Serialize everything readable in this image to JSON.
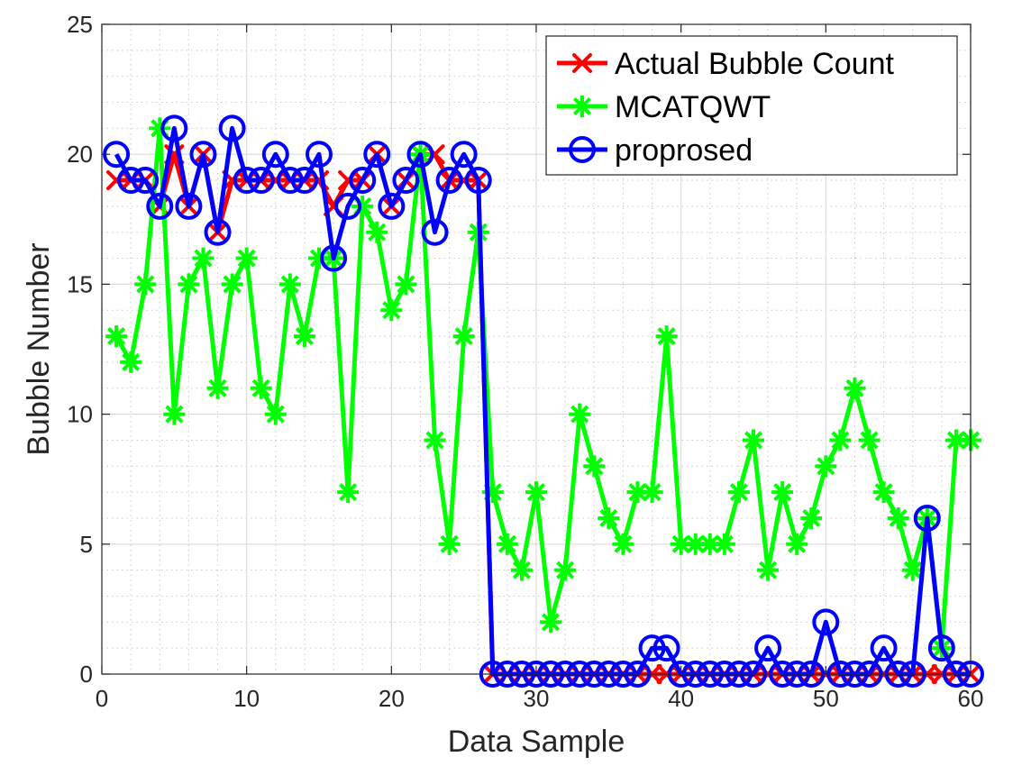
{
  "chart_data": {
    "type": "line",
    "title": "",
    "xlabel": "Data Sample",
    "ylabel": "Bubble Number",
    "xlim": [
      0,
      60
    ],
    "ylim": [
      0,
      25
    ],
    "xticks": [
      0,
      10,
      20,
      30,
      40,
      50,
      60
    ],
    "yticks": [
      0,
      5,
      10,
      15,
      20,
      25
    ],
    "grid": true,
    "minor_grid": true,
    "legend_position": "top-right",
    "x": [
      1,
      2,
      3,
      4,
      5,
      6,
      7,
      8,
      9,
      10,
      11,
      12,
      13,
      14,
      15,
      16,
      17,
      18,
      19,
      20,
      21,
      22,
      23,
      24,
      25,
      26,
      27,
      28,
      29,
      30,
      31,
      32,
      33,
      34,
      35,
      36,
      37,
      38,
      39,
      40,
      41,
      42,
      43,
      44,
      45,
      46,
      47,
      48,
      49,
      50,
      51,
      52,
      53,
      54,
      55,
      56,
      57,
      58,
      59,
      60
    ],
    "series": [
      {
        "name": "Actual Bubble Count",
        "color": "#ff0000",
        "marker": "x",
        "values": [
          19,
          19,
          19,
          18,
          20,
          18,
          20,
          17,
          19,
          19,
          19,
          19,
          19,
          19,
          19,
          18,
          19,
          19,
          20,
          18,
          19,
          20,
          20,
          19,
          19,
          19,
          0,
          0,
          0,
          0,
          0,
          0,
          0,
          0,
          0,
          0,
          0,
          0,
          0,
          0,
          0,
          0,
          0,
          0,
          0,
          0,
          0,
          0,
          0,
          0,
          0,
          0,
          0,
          0,
          0,
          0,
          0,
          0,
          0,
          0
        ]
      },
      {
        "name": "MCATQWT",
        "color": "#00ff00",
        "marker": "asterisk",
        "values": [
          13,
          12,
          15,
          21,
          10,
          15,
          16,
          11,
          15,
          16,
          11,
          10,
          15,
          13,
          16,
          16,
          7,
          18,
          17,
          14,
          15,
          20,
          9,
          5,
          13,
          17,
          7,
          5,
          4,
          7,
          2,
          4,
          10,
          8,
          6,
          5,
          7,
          7,
          13,
          5,
          5,
          5,
          5,
          7,
          9,
          4,
          7,
          5,
          6,
          8,
          9,
          11,
          9,
          7,
          6,
          4,
          6,
          1,
          9,
          9
        ]
      },
      {
        "name": "proprosed",
        "color": "#0000ff",
        "marker": "circle",
        "values": [
          20,
          19,
          19,
          18,
          21,
          18,
          20,
          17,
          21,
          19,
          19,
          20,
          19,
          19,
          20,
          16,
          18,
          19,
          20,
          18,
          19,
          20,
          17,
          19,
          20,
          19,
          0,
          0,
          0,
          0,
          0,
          0,
          0,
          0,
          0,
          0,
          0,
          1,
          1,
          0,
          0,
          0,
          0,
          0,
          0,
          1,
          0,
          0,
          0,
          2,
          0,
          0,
          0,
          1,
          0,
          0,
          6,
          1,
          0,
          0
        ]
      }
    ]
  }
}
